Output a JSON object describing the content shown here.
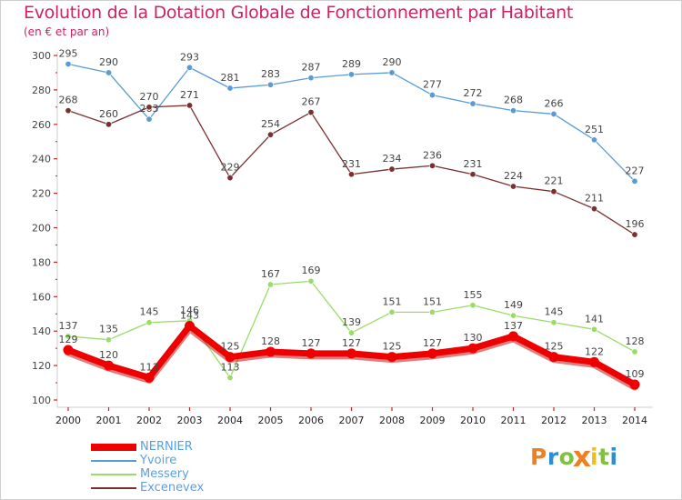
{
  "title": "Evolution de la Dotation Globale de Fonctionnement par Habitant",
  "subtitle": "(en € et par an)",
  "logo_text": "Proxiti",
  "logo_colors": [
    "#f07f1f",
    "#2a8fd4",
    "#7fc241",
    "#f07f1f",
    "#e8c020",
    "#7fc241",
    "#2a8fd4"
  ],
  "chart_data": {
    "type": "line",
    "title": "Evolution de la Dotation Globale de Fonctionnement par Habitant",
    "subtitle": "(en € et par an)",
    "x": [
      "2000",
      "2001",
      "2002",
      "2003",
      "2004",
      "2005",
      "2006",
      "2007",
      "2008",
      "2009",
      "2010",
      "2011",
      "2012",
      "2013",
      "2014"
    ],
    "ylim": [
      100,
      300
    ],
    "yticks": [
      100,
      120,
      140,
      160,
      180,
      200,
      220,
      240,
      260,
      280,
      300
    ],
    "grid": false,
    "legend_position": "bottom-left",
    "series": [
      {
        "name": "NERNIER",
        "color": "#ee0000",
        "emphasis": true,
        "values": [
          129,
          120,
          113,
          143,
          125,
          128,
          127,
          127,
          125,
          127,
          130,
          137,
          125,
          122,
          109
        ]
      },
      {
        "name": "Yvoire",
        "color": "#5b9bd5",
        "values": [
          295,
          290,
          263,
          293,
          281,
          283,
          287,
          289,
          290,
          277,
          272,
          268,
          266,
          251,
          227
        ]
      },
      {
        "name": "Messery",
        "color": "#99dd66",
        "values": [
          137,
          135,
          145,
          146,
          113,
          167,
          169,
          139,
          151,
          151,
          155,
          149,
          145,
          141,
          128
        ]
      },
      {
        "name": "Excenevex",
        "color": "#7b3030",
        "values": [
          268,
          260,
          270,
          271,
          229,
          254,
          267,
          231,
          234,
          236,
          231,
          224,
          221,
          211,
          196
        ]
      }
    ]
  }
}
